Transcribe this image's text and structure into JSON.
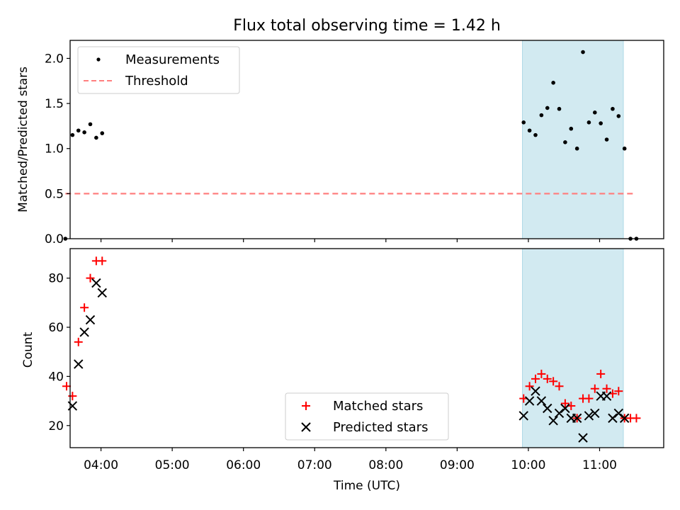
{
  "title": "Flux total observing time = 1.42 h",
  "x_tick_labels": [
    "04:00",
    "05:00",
    "06:00",
    "07:00",
    "08:00",
    "09:00",
    "10:00",
    "11:00"
  ],
  "colors": {
    "measurement": "#000000",
    "threshold": "#ff7f7f",
    "matched": "#ff0000",
    "predicted": "#000000",
    "span_fill": "#add8e6"
  },
  "chart_data": [
    {
      "type": "scatter",
      "ylabel": "Matched/Predicted stars",
      "xlabel": "",
      "xlim": [
        "03:34",
        "11:54"
      ],
      "ylim": [
        0,
        2.2
      ],
      "y_ticks": [
        "0.0",
        "0.5",
        "1.0",
        "1.5",
        "2.0"
      ],
      "legend": {
        "position": "upper-left",
        "entries": [
          "Measurements",
          "Threshold"
        ]
      },
      "highlight_span": [
        "09:55",
        "11:20"
      ],
      "threshold": {
        "y": 0.5,
        "x_range": [
          "03:30",
          "11:30"
        ]
      },
      "series": [
        {
          "name": "Measurements",
          "marker": "dot",
          "x": [
            "03:30",
            "03:36",
            "03:41",
            "03:46",
            "03:51",
            "03:56",
            "04:01",
            "09:56",
            "10:01",
            "10:06",
            "10:11",
            "10:16",
            "10:21",
            "10:26",
            "10:31",
            "10:36",
            "10:41",
            "10:46",
            "10:51",
            "10:56",
            "11:01",
            "11:06",
            "11:11",
            "11:16",
            "11:21",
            "11:26",
            "11:31"
          ],
          "y": [
            0.0,
            1.15,
            1.2,
            1.18,
            1.27,
            1.12,
            1.17,
            1.29,
            1.2,
            1.15,
            1.37,
            1.45,
            1.73,
            1.44,
            1.07,
            1.22,
            1.0,
            2.07,
            1.29,
            1.4,
            1.28,
            1.1,
            1.44,
            1.36,
            1.0,
            0.0,
            0.0
          ]
        }
      ]
    },
    {
      "type": "scatter",
      "ylabel": "Count",
      "xlabel": "Time (UTC)",
      "xlim": [
        "03:34",
        "11:54"
      ],
      "ylim": [
        11,
        92
      ],
      "y_ticks": [
        "20",
        "40",
        "60",
        "80"
      ],
      "legend": {
        "position": "lower-center",
        "entries": [
          "Matched stars",
          "Predicted stars"
        ]
      },
      "highlight_span": [
        "09:55",
        "11:20"
      ],
      "series": [
        {
          "name": "Matched stars",
          "marker": "plus",
          "x": [
            "03:31",
            "03:36",
            "03:41",
            "03:46",
            "03:51",
            "03:56",
            "04:01",
            "09:56",
            "10:01",
            "10:06",
            "10:11",
            "10:16",
            "10:21",
            "10:26",
            "10:31",
            "10:36",
            "10:41",
            "10:46",
            "10:51",
            "10:56",
            "11:01",
            "11:06",
            "11:11",
            "11:16",
            "11:21",
            "11:26",
            "11:31"
          ],
          "y": [
            36,
            32,
            54,
            68,
            80,
            87,
            87,
            31,
            36,
            39,
            41,
            39,
            38,
            36,
            29,
            28,
            23,
            31,
            31,
            35,
            41,
            35,
            33,
            34,
            23,
            23,
            23
          ]
        },
        {
          "name": "Predicted stars",
          "marker": "x",
          "x": [
            "03:36",
            "03:41",
            "03:46",
            "03:51",
            "03:56",
            "04:01",
            "09:56",
            "10:01",
            "10:06",
            "10:11",
            "10:16",
            "10:21",
            "10:26",
            "10:31",
            "10:36",
            "10:41",
            "10:46",
            "10:51",
            "10:56",
            "11:01",
            "11:06",
            "11:11",
            "11:16",
            "11:21"
          ],
          "y": [
            28,
            45,
            58,
            63,
            78,
            74,
            24,
            30,
            34,
            30,
            27,
            22,
            25,
            27,
            23,
            23,
            15,
            24,
            25,
            32,
            32,
            23,
            25,
            23
          ]
        }
      ]
    }
  ]
}
